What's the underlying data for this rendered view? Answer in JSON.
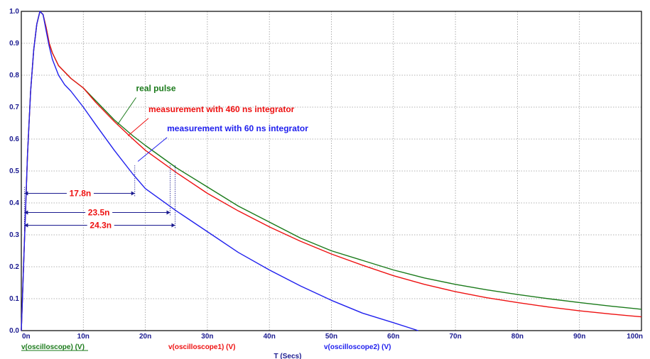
{
  "chart_data": {
    "type": "line",
    "xlabel": "T (Secs)",
    "ylabel": "",
    "xlim": [
      0,
      100
    ],
    "ylim": [
      0,
      1.0
    ],
    "grid": true,
    "x_ticks": [
      "0n",
      "10n",
      "20n",
      "30n",
      "40n",
      "50n",
      "60n",
      "70n",
      "80n",
      "90n",
      "100n"
    ],
    "y_ticks": [
      "0.0",
      "0.1",
      "0.2",
      "0.3",
      "0.4",
      "0.5",
      "0.6",
      "0.7",
      "0.8",
      "0.9",
      "1.0"
    ],
    "series": [
      {
        "name": "v(oscilloscope) (V)",
        "color": "#1a7a1a",
        "x": [
          0,
          0.5,
          1,
          1.5,
          2,
          2.5,
          3,
          3.5,
          4,
          4.5,
          5,
          6,
          7,
          8,
          10,
          12,
          15,
          18,
          20,
          25,
          30,
          35,
          40,
          45,
          50,
          55,
          60,
          65,
          70,
          75,
          80,
          85,
          90,
          95,
          100
        ],
        "y": [
          0,
          0.28,
          0.55,
          0.75,
          0.88,
          0.96,
          1.0,
          0.99,
          0.95,
          0.9,
          0.87,
          0.83,
          0.81,
          0.79,
          0.76,
          0.72,
          0.66,
          0.61,
          0.58,
          0.51,
          0.45,
          0.39,
          0.34,
          0.29,
          0.25,
          0.22,
          0.19,
          0.165,
          0.145,
          0.128,
          0.113,
          0.1,
          0.088,
          0.077,
          0.067
        ]
      },
      {
        "name": "v(oscilloscope1) (V)",
        "color": "#ee1111",
        "x": [
          0,
          0.5,
          1,
          1.5,
          2,
          2.5,
          3,
          3.5,
          4,
          4.5,
          5,
          6,
          7,
          8,
          10,
          12,
          15,
          18,
          20,
          25,
          30,
          35,
          40,
          45,
          50,
          55,
          60,
          65,
          70,
          75,
          80,
          85,
          90,
          95,
          100
        ],
        "y": [
          0,
          0.28,
          0.55,
          0.75,
          0.88,
          0.96,
          1.0,
          0.99,
          0.95,
          0.9,
          0.87,
          0.83,
          0.81,
          0.79,
          0.76,
          0.715,
          0.655,
          0.6,
          0.565,
          0.495,
          0.43,
          0.375,
          0.325,
          0.28,
          0.24,
          0.205,
          0.172,
          0.145,
          0.122,
          0.103,
          0.088,
          0.074,
          0.062,
          0.052,
          0.043
        ]
      },
      {
        "name": "v(oscilloscope2) (V)",
        "color": "#2020ee",
        "x": [
          0,
          0.5,
          1,
          1.5,
          2,
          2.5,
          3,
          3.5,
          4,
          4.5,
          5,
          6,
          7,
          8,
          10,
          12,
          15,
          18,
          20,
          25,
          30,
          35,
          40,
          45,
          50,
          55,
          60,
          64
        ],
        "y": [
          0,
          0.28,
          0.55,
          0.75,
          0.88,
          0.96,
          1.0,
          0.99,
          0.94,
          0.89,
          0.85,
          0.8,
          0.77,
          0.75,
          0.7,
          0.645,
          0.565,
          0.49,
          0.445,
          0.375,
          0.31,
          0.245,
          0.19,
          0.14,
          0.095,
          0.055,
          0.025,
          0.0
        ]
      }
    ],
    "annotations": [
      {
        "text": "real pulse",
        "color": "#1a7a1a",
        "at": [
          18.5,
          0.75
        ],
        "from": [
          18.5,
          0.73
        ],
        "to": [
          15.5,
          0.645
        ]
      },
      {
        "text": "measurement with 460 ns integrator",
        "color": "#ee1111",
        "at": [
          20.5,
          0.685
        ],
        "from": [
          20.5,
          0.665
        ],
        "to": [
          17.2,
          0.61
        ]
      },
      {
        "text": "measurement with 60 ns integrator",
        "color": "#2020ee",
        "at": [
          23.5,
          0.625
        ],
        "from": [
          23.5,
          0.605
        ],
        "to": [
          18.8,
          0.53
        ]
      }
    ],
    "measurements": [
      {
        "text": "17.8n",
        "from": 0.5,
        "to": 18.3,
        "y": 0.43,
        "end_y": 0.52,
        "label_at": 9.5
      },
      {
        "text": "23.5n",
        "from": 0.5,
        "to": 24.0,
        "y": 0.37,
        "end_y": 0.52,
        "label_at": 12.5
      },
      {
        "text": "24.3n",
        "from": 0.5,
        "to": 24.8,
        "y": 0.33,
        "end_y": 0.52,
        "label_at": 12.8
      }
    ],
    "legend": [
      {
        "text": "v(oscilloscope) (V)",
        "color": "#1a7a1a",
        "position": "bottom-left"
      },
      {
        "text": "v(oscilloscope1) (V)",
        "color": "#ee1111",
        "position": "bottom-center-left"
      },
      {
        "text": "v(oscilloscope2) (V)",
        "color": "#2020ee",
        "position": "bottom-center"
      }
    ],
    "colors": {
      "axis": "#000000",
      "grid": "#9a9a9a",
      "tick_label": "#1a1a90",
      "measure_line": "#1a1a90",
      "measure_text": "#ee1111"
    }
  }
}
